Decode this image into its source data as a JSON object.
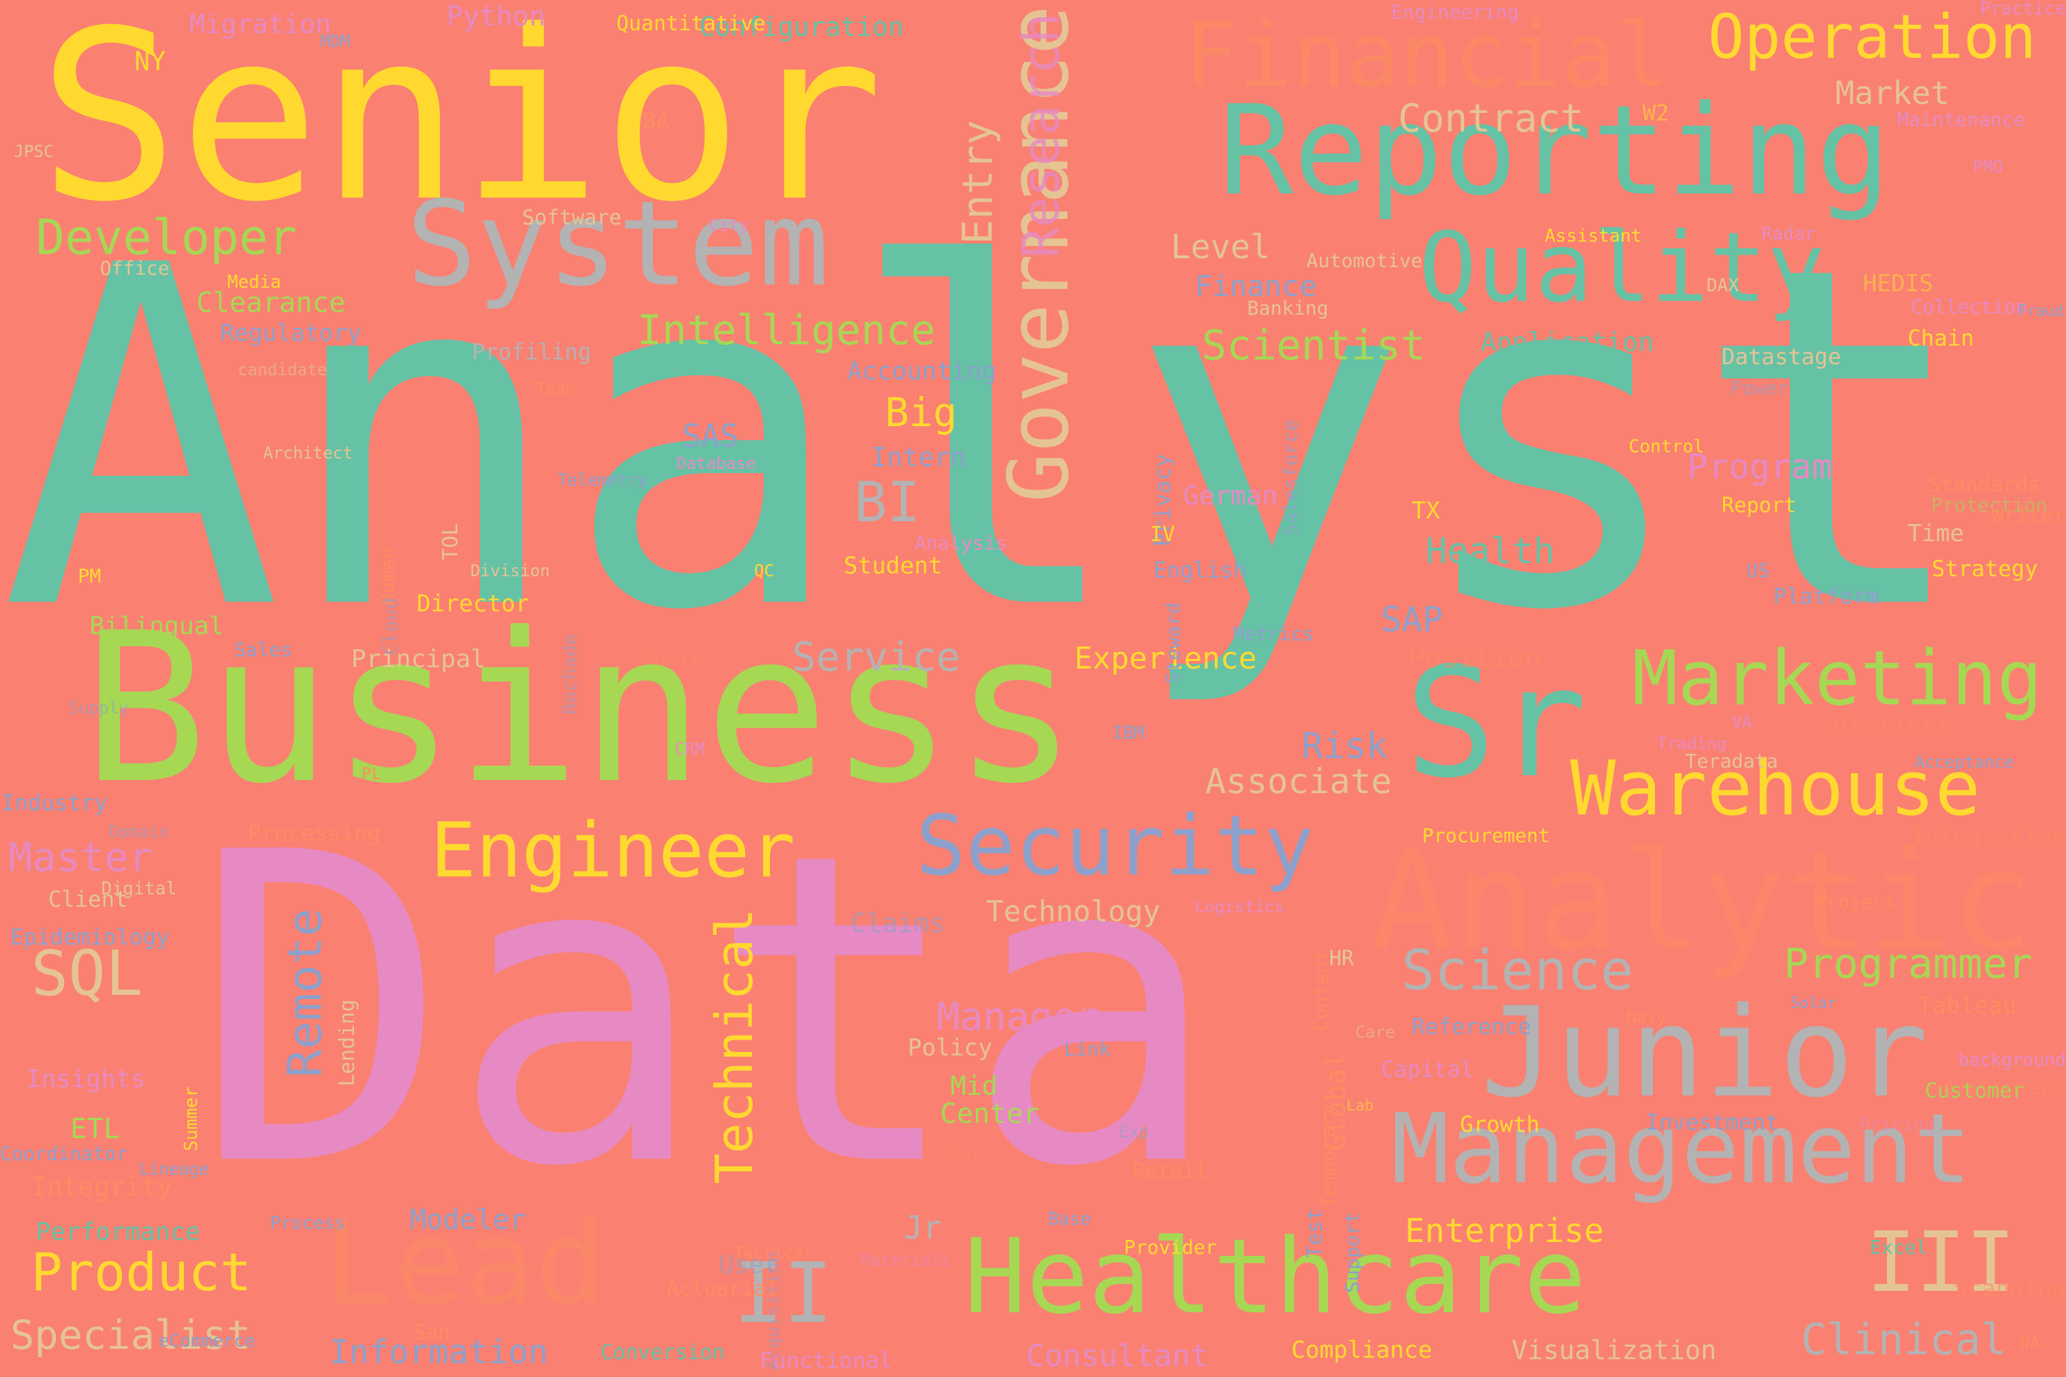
{
  "palette": {
    "bg": "#fa8072",
    "teal": "#66c2a5",
    "orange": "#fc8d62",
    "blue": "#8da0cb",
    "pink": "#e78ac3",
    "lime": "#a6d854",
    "yellow": "#ffd92f",
    "tan": "#e5c494",
    "gray": "#b3b3b3"
  },
  "words": [
    {
      "t": "Analyst",
      "c": "#66c2a5"
    },
    {
      "t": "Data",
      "c": "#e78ac3"
    },
    {
      "t": "Business",
      "c": "#a6d854"
    },
    {
      "t": "Senior",
      "c": "#ffd92f"
    },
    {
      "t": "Sr",
      "c": "#66c2a5"
    },
    {
      "t": "Reporting",
      "c": "#66c2a5"
    },
    {
      "t": "System",
      "c": "#b3b3b3"
    },
    {
      "t": "Quality",
      "c": "#66c2a5"
    },
    {
      "t": "Financial",
      "c": "#fc8d62"
    },
    {
      "t": "Operation",
      "c": "#ffd92f"
    },
    {
      "t": "Governance",
      "c": "#e5c494"
    },
    {
      "t": "Research",
      "c": "#e78ac3"
    },
    {
      "t": "Marketing",
      "c": "#a6d854"
    },
    {
      "t": "Warehouse",
      "c": "#ffd92f"
    },
    {
      "t": "Analytic",
      "c": "#fc8d62"
    },
    {
      "t": "Security",
      "c": "#8da0cb"
    },
    {
      "t": "Engineer",
      "c": "#ffd92f"
    },
    {
      "t": "Junior",
      "c": "#b3b3b3"
    },
    {
      "t": "Management",
      "c": "#b3b3b3"
    },
    {
      "t": "Healthcare",
      "c": "#a6d854"
    },
    {
      "t": "Lead",
      "c": "#fc8d62"
    },
    {
      "t": "Technical",
      "c": "#ffd92f"
    },
    {
      "t": "Remote",
      "c": "#8da0cb"
    },
    {
      "t": "Science",
      "c": "#b3b3b3"
    },
    {
      "t": "Programmer",
      "c": "#a6d854"
    },
    {
      "t": "Developer",
      "c": "#a6d854"
    },
    {
      "t": "Intelligence",
      "c": "#a6d854"
    },
    {
      "t": "Scientist",
      "c": "#a6d854"
    },
    {
      "t": "SQL",
      "c": "#e5c494"
    },
    {
      "t": "Product",
      "c": "#ffd92f"
    },
    {
      "t": "Specialist",
      "c": "#e5c494"
    },
    {
      "t": "II",
      "c": "#b3b3b3"
    },
    {
      "t": "III",
      "c": "#e5c494"
    },
    {
      "t": "Clinical",
      "c": "#b3b3b3"
    },
    {
      "t": "Information",
      "c": "#8da0cb"
    },
    {
      "t": "Consultant",
      "c": "#e78ac3"
    },
    {
      "t": "Visualization",
      "c": "#e5c494"
    },
    {
      "t": "Compliance",
      "c": "#ffd92f"
    },
    {
      "t": "Enterprise",
      "c": "#ffd92f"
    },
    {
      "t": "Master",
      "c": "#e78ac3"
    },
    {
      "t": "BI",
      "c": "#b3b3b3"
    },
    {
      "t": "Big",
      "c": "#ffd92f"
    },
    {
      "t": "Service",
      "c": "#b3b3b3"
    },
    {
      "t": "Experience",
      "c": "#ffd92f"
    },
    {
      "t": "Associate",
      "c": "#e5c494"
    },
    {
      "t": "Risk",
      "c": "#8da0cb"
    },
    {
      "t": "Health",
      "c": "#66c2a5"
    },
    {
      "t": "SAP",
      "c": "#8da0cb"
    },
    {
      "t": "Program",
      "c": "#e78ac3"
    },
    {
      "t": "Contract",
      "c": "#e5c494"
    },
    {
      "t": "Market",
      "c": "#e5c494"
    },
    {
      "t": "Level",
      "c": "#e5c494"
    },
    {
      "t": "Finance",
      "c": "#8da0cb"
    },
    {
      "t": "Application",
      "c": "#66c2a5"
    },
    {
      "t": "Manager",
      "c": "#e78ac3"
    },
    {
      "t": "Technology",
      "c": "#e5c494"
    },
    {
      "t": "Clearance",
      "c": "#a6d854"
    },
    {
      "t": "Regulatory",
      "c": "#8da0cb"
    },
    {
      "t": "Configuration",
      "c": "#66c2a5"
    },
    {
      "t": "Migration",
      "c": "#e78ac3"
    },
    {
      "t": "Python",
      "c": "#e78ac3"
    },
    {
      "t": "Entry",
      "c": "#e5c494"
    },
    {
      "t": "Accounting",
      "c": "#8da0cb"
    },
    {
      "t": "Intern",
      "c": "#8da0cb"
    },
    {
      "t": "SAS",
      "c": "#8da0cb"
    },
    {
      "t": "Principal",
      "c": "#e5c494"
    },
    {
      "t": "Bilingual",
      "c": "#a6d854"
    },
    {
      "t": "Client",
      "c": "#e5c494"
    },
    {
      "t": "Epidemiology",
      "c": "#8da0cb"
    },
    {
      "t": "Insights",
      "c": "#e78ac3"
    },
    {
      "t": "ETL",
      "c": "#a6d854"
    },
    {
      "t": "Integrity",
      "c": "#fc8d62"
    },
    {
      "t": "Performance",
      "c": "#66c2a5"
    },
    {
      "t": "Modeler",
      "c": "#8da0cb"
    },
    {
      "t": "Jr",
      "c": "#b3b3b3"
    },
    {
      "t": "Center",
      "c": "#a6d854"
    },
    {
      "t": "Mid",
      "c": "#a6d854"
    },
    {
      "t": "Policy",
      "c": "#e5c494"
    },
    {
      "t": "Claims",
      "c": "#8da0cb"
    },
    {
      "t": "Tableau",
      "c": "#fc8d62"
    },
    {
      "t": "Customer",
      "c": "#a6d854"
    },
    {
      "t": "Growth",
      "c": "#ffd92f"
    },
    {
      "t": "Investment",
      "c": "#8da0cb"
    },
    {
      "t": "Reference",
      "c": "#8da0cb"
    },
    {
      "t": "Capital",
      "c": "#e78ac3"
    },
    {
      "t": "Global",
      "c": "#fc8d62"
    },
    {
      "t": "HR",
      "c": "#e5c494"
    },
    {
      "t": "Time",
      "c": "#e5c494"
    },
    {
      "t": "Strategy",
      "c": "#ffd92f"
    },
    {
      "t": "Datastage",
      "c": "#e5c494"
    },
    {
      "t": "Chain",
      "c": "#ffd92f"
    },
    {
      "t": "Collection",
      "c": "#e78ac3"
    },
    {
      "t": "HEDIS",
      "c": "#ffd92f"
    },
    {
      "t": "Position",
      "c": "#fc8d62"
    },
    {
      "t": "Solutions",
      "c": "#fc8d62"
    },
    {
      "t": "Integration",
      "c": "#fc8d62"
    },
    {
      "t": "Project",
      "c": "#fc8d62"
    },
    {
      "t": "Excel",
      "c": "#66c2a5"
    },
    {
      "t": "Profiling",
      "c": "#b3b3b3"
    },
    {
      "t": "Software",
      "c": "#e5c494"
    },
    {
      "t": "Office",
      "c": "#e5c494"
    },
    {
      "t": "Media",
      "c": "#ffd92f"
    },
    {
      "t": "Automotive",
      "c": "#e5c494"
    },
    {
      "t": "Banking",
      "c": "#e5c494"
    },
    {
      "t": "Assistant",
      "c": "#ffd92f"
    },
    {
      "t": "Radar",
      "c": "#e78ac3"
    },
    {
      "t": "Maintenance",
      "c": "#e78ac3"
    },
    {
      "t": "Engineering",
      "c": "#e78ac3"
    },
    {
      "t": "Practice",
      "c": "#e78ac3"
    },
    {
      "t": "PMO",
      "c": "#e78ac3"
    },
    {
      "t": "W2",
      "c": "#ffd92f"
    },
    {
      "t": "BA",
      "c": "#fc8d62"
    },
    {
      "t": "NY",
      "c": "#ffd92f"
    },
    {
      "t": "MDM",
      "c": "#8da0cb"
    },
    {
      "t": "Quantitative",
      "c": "#ffd92f"
    },
    {
      "t": "JPSC",
      "c": "#e5c494"
    },
    {
      "t": "City",
      "c": "#e78ac3"
    },
    {
      "t": "candidate",
      "c": "#e5c494"
    },
    {
      "t": "Team",
      "c": "#fc8d62"
    },
    {
      "t": "Database",
      "c": "#e78ac3"
    },
    {
      "t": "Telemetry",
      "c": "#8da0cb"
    },
    {
      "t": "Architect",
      "c": "#e5c494"
    },
    {
      "t": "TOL",
      "c": "#e5c494"
    },
    {
      "t": "Human",
      "c": "#fc8d62"
    },
    {
      "t": "Cloud",
      "c": "#8da0cb"
    },
    {
      "t": "Division",
      "c": "#e5c494"
    },
    {
      "t": "QC",
      "c": "#ffd92f"
    },
    {
      "t": "PM",
      "c": "#ffd92f"
    },
    {
      "t": "Director",
      "c": "#ffd92f"
    },
    {
      "t": "Sales",
      "c": "#8da0cb"
    },
    {
      "t": "Rochade",
      "c": "#8da0cb"
    },
    {
      "t": "Expert",
      "c": "#fc8d62"
    },
    {
      "t": "Analysis",
      "c": "#e78ac3"
    },
    {
      "t": "Student",
      "c": "#ffd92f"
    },
    {
      "t": "Privacy",
      "c": "#8da0cb"
    },
    {
      "t": "Salesforce",
      "c": "#8da0cb"
    },
    {
      "t": "German",
      "c": "#e78ac3"
    },
    {
      "t": "IV",
      "c": "#ffd92f"
    },
    {
      "t": "English",
      "c": "#8da0cb"
    },
    {
      "t": "Steward",
      "c": "#8da0cb"
    },
    {
      "t": "Metrics",
      "c": "#8da0cb"
    },
    {
      "t": "TX",
      "c": "#ffd92f"
    },
    {
      "t": "Report",
      "c": "#ffd92f"
    },
    {
      "t": "Control",
      "c": "#ffd92f"
    },
    {
      "t": "Standards",
      "c": "#fc8d62"
    },
    {
      "t": "Protection",
      "c": "#a6d854"
    },
    {
      "t": "Writer",
      "c": "#fc8d62"
    },
    {
      "t": "US",
      "c": "#8da0cb"
    },
    {
      "t": "Platform",
      "c": "#8da0cb"
    },
    {
      "t": "Power",
      "c": "#8da0cb"
    },
    {
      "t": "Fraud",
      "c": "#8da0cb"
    },
    {
      "t": "DAX",
      "c": "#e5c494"
    },
    {
      "t": "VA",
      "c": "#e78ac3"
    },
    {
      "t": "Trading",
      "c": "#e78ac3"
    },
    {
      "t": "Teradata",
      "c": "#e5c494"
    },
    {
      "t": "Acceptance",
      "c": "#8da0cb"
    },
    {
      "t": "Procurement",
      "c": "#ffd92f"
    },
    {
      "t": "Logistics",
      "c": "#e78ac3"
    },
    {
      "t": "Content",
      "c": "#fc8d62"
    },
    {
      "t": "Care",
      "c": "#e5c494"
    },
    {
      "t": "Navy",
      "c": "#fc8d62"
    },
    {
      "t": "Solar",
      "c": "#8da0cb"
    },
    {
      "t": "background",
      "c": "#e78ac3"
    },
    {
      "t": "Pricing",
      "c": "#e78ac3"
    },
    {
      "t": "Development",
      "c": "#fc8d62"
    },
    {
      "t": "Scanning",
      "c": "#fc8d62"
    },
    {
      "t": "QA",
      "c": "#fc8d62"
    },
    {
      "t": "Lab",
      "c": "#ffd92f"
    },
    {
      "t": "Temporary",
      "c": "#fc8d62"
    },
    {
      "t": "Test",
      "c": "#8da0cb"
    },
    {
      "t": "Support",
      "c": "#8da0cb"
    },
    {
      "t": "Link",
      "c": "#8da0cb"
    },
    {
      "t": "Exp",
      "c": "#8da0cb"
    },
    {
      "t": "Epic",
      "c": "#fc8d62"
    },
    {
      "t": "Retail",
      "c": "#fc8d62"
    },
    {
      "t": "Base",
      "c": "#8da0cb"
    },
    {
      "t": "Provider",
      "c": "#ffd92f"
    },
    {
      "t": "Acquisition",
      "c": "#8da0cb"
    },
    {
      "t": "Tactical",
      "c": "#fc8d62"
    },
    {
      "t": "Materials",
      "c": "#e78ac3"
    },
    {
      "t": "Actuarial",
      "c": "#fc8d62"
    },
    {
      "t": "User",
      "c": "#8da0cb"
    },
    {
      "t": "San",
      "c": "#fc8d62"
    },
    {
      "t": "Process",
      "c": "#8da0cb"
    },
    {
      "t": "eCommerce",
      "c": "#8da0cb"
    },
    {
      "t": "Conversion",
      "c": "#66c2a5"
    },
    {
      "t": "Functional",
      "c": "#e78ac3"
    },
    {
      "t": "Coordinator",
      "c": "#8da0cb"
    },
    {
      "t": "Lineage",
      "c": "#8da0cb"
    },
    {
      "t": "Summer",
      "c": "#ffd92f"
    },
    {
      "t": "Lending",
      "c": "#e5c494"
    },
    {
      "t": "Digital",
      "c": "#e5c494"
    },
    {
      "t": "Domain",
      "c": "#8da0cb"
    },
    {
      "t": "Processing",
      "c": "#fc8d62"
    },
    {
      "t": "Industry",
      "c": "#8da0cb"
    },
    {
      "t": "Supply",
      "c": "#8da0cb"
    },
    {
      "t": "PL",
      "c": "#fc8d62"
    },
    {
      "t": "CRM",
      "c": "#e78ac3"
    },
    {
      "t": "IBM",
      "c": "#8da0cb"
    },
    {
      "t": "Secret",
      "c": "#e5c494"
    }
  ]
}
